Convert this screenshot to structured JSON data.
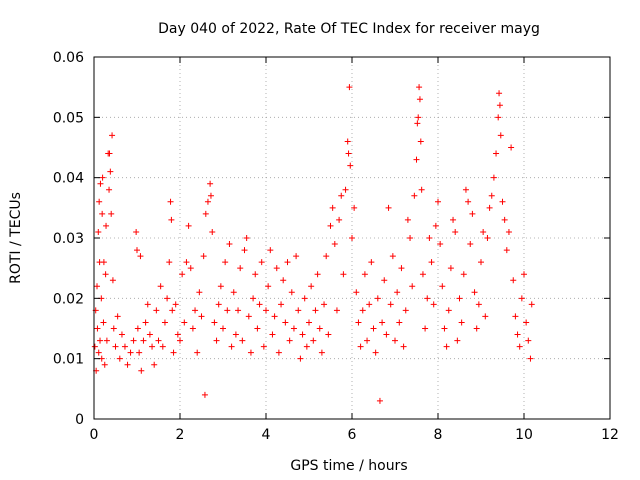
{
  "chart_data": {
    "type": "scatter",
    "title": "Day 040 of 2022, Rate Of TEC Index for receiver mayg",
    "xlabel": "GPS time / hours",
    "ylabel": "ROTI / TECUs",
    "xlim": [
      0,
      12
    ],
    "ylim": [
      0,
      0.06
    ],
    "xticks": [
      0,
      2,
      4,
      6,
      8,
      10,
      12
    ],
    "yticks": [
      0,
      0.01,
      0.02,
      0.03,
      0.04,
      0.05,
      0.06
    ],
    "xtick_labels": [
      "0",
      "2",
      "4",
      "6",
      "8",
      "10",
      "12"
    ],
    "ytick_labels": [
      "0",
      "0.01",
      "0.02",
      "0.03",
      "0.04",
      "0.05",
      "0.06"
    ],
    "grid": true,
    "marker": "+",
    "color": "#ff0000",
    "series": [
      {
        "points": [
          [
            0.02,
            0.012
          ],
          [
            0.04,
            0.018
          ],
          [
            0.05,
            0.008
          ],
          [
            0.07,
            0.022
          ],
          [
            0.08,
            0.015
          ],
          [
            0.1,
            0.031
          ],
          [
            0.11,
            0.011
          ],
          [
            0.12,
            0.036
          ],
          [
            0.13,
            0.026
          ],
          [
            0.14,
            0.013
          ],
          [
            0.15,
            0.039
          ],
          [
            0.17,
            0.02
          ],
          [
            0.18,
            0.01
          ],
          [
            0.19,
            0.034
          ],
          [
            0.2,
            0.04
          ],
          [
            0.22,
            0.016
          ],
          [
            0.23,
            0.026
          ],
          [
            0.25,
            0.009
          ],
          [
            0.27,
            0.024
          ],
          [
            0.28,
            0.032
          ],
          [
            0.3,
            0.013
          ],
          [
            0.33,
            0.044
          ],
          [
            0.35,
            0.038
          ],
          [
            0.36,
            0.044
          ],
          [
            0.38,
            0.041
          ],
          [
            0.4,
            0.034
          ],
          [
            0.42,
            0.047
          ],
          [
            0.44,
            0.023
          ],
          [
            0.46,
            0.015
          ],
          [
            0.5,
            0.012
          ],
          [
            0.55,
            0.017
          ],
          [
            0.6,
            0.01
          ],
          [
            0.65,
            0.014
          ],
          [
            0.72,
            0.012
          ],
          [
            0.78,
            0.009
          ],
          [
            0.85,
            0.011
          ],
          [
            0.92,
            0.013
          ],
          [
            0.98,
            0.031
          ],
          [
            1.0,
            0.028
          ],
          [
            1.02,
            0.015
          ],
          [
            1.05,
            0.011
          ],
          [
            1.08,
            0.027
          ],
          [
            1.1,
            0.008
          ],
          [
            1.15,
            0.013
          ],
          [
            1.2,
            0.016
          ],
          [
            1.25,
            0.019
          ],
          [
            1.3,
            0.014
          ],
          [
            1.35,
            0.012
          ],
          [
            1.4,
            0.009
          ],
          [
            1.45,
            0.018
          ],
          [
            1.5,
            0.013
          ],
          [
            1.55,
            0.022
          ],
          [
            1.6,
            0.012
          ],
          [
            1.65,
            0.016
          ],
          [
            1.7,
            0.02
          ],
          [
            1.75,
            0.026
          ],
          [
            1.78,
            0.036
          ],
          [
            1.8,
            0.033
          ],
          [
            1.82,
            0.018
          ],
          [
            1.85,
            0.011
          ],
          [
            1.9,
            0.019
          ],
          [
            1.95,
            0.014
          ],
          [
            2.0,
            0.013
          ],
          [
            2.05,
            0.024
          ],
          [
            2.1,
            0.016
          ],
          [
            2.15,
            0.026
          ],
          [
            2.2,
            0.032
          ],
          [
            2.25,
            0.025
          ],
          [
            2.3,
            0.015
          ],
          [
            2.35,
            0.018
          ],
          [
            2.4,
            0.011
          ],
          [
            2.45,
            0.021
          ],
          [
            2.5,
            0.017
          ],
          [
            2.55,
            0.027
          ],
          [
            2.58,
            0.004
          ],
          [
            2.6,
            0.034
          ],
          [
            2.65,
            0.036
          ],
          [
            2.7,
            0.039
          ],
          [
            2.72,
            0.037
          ],
          [
            2.75,
            0.031
          ],
          [
            2.8,
            0.016
          ],
          [
            2.85,
            0.013
          ],
          [
            2.9,
            0.019
          ],
          [
            2.95,
            0.022
          ],
          [
            3.0,
            0.015
          ],
          [
            3.05,
            0.026
          ],
          [
            3.1,
            0.018
          ],
          [
            3.15,
            0.029
          ],
          [
            3.2,
            0.012
          ],
          [
            3.25,
            0.021
          ],
          [
            3.3,
            0.014
          ],
          [
            3.35,
            0.018
          ],
          [
            3.4,
            0.025
          ],
          [
            3.45,
            0.013
          ],
          [
            3.5,
            0.028
          ],
          [
            3.55,
            0.03
          ],
          [
            3.6,
            0.017
          ],
          [
            3.65,
            0.011
          ],
          [
            3.7,
            0.02
          ],
          [
            3.75,
            0.024
          ],
          [
            3.8,
            0.015
          ],
          [
            3.85,
            0.019
          ],
          [
            3.9,
            0.026
          ],
          [
            3.95,
            0.012
          ],
          [
            4.0,
            0.018
          ],
          [
            4.05,
            0.022
          ],
          [
            4.1,
            0.028
          ],
          [
            4.15,
            0.014
          ],
          [
            4.2,
            0.017
          ],
          [
            4.25,
            0.025
          ],
          [
            4.3,
            0.011
          ],
          [
            4.35,
            0.019
          ],
          [
            4.4,
            0.023
          ],
          [
            4.45,
            0.016
          ],
          [
            4.5,
            0.026
          ],
          [
            4.55,
            0.013
          ],
          [
            4.6,
            0.021
          ],
          [
            4.65,
            0.015
          ],
          [
            4.7,
            0.027
          ],
          [
            4.75,
            0.018
          ],
          [
            4.8,
            0.01
          ],
          [
            4.85,
            0.014
          ],
          [
            4.9,
            0.02
          ],
          [
            4.95,
            0.012
          ],
          [
            5.0,
            0.016
          ],
          [
            5.05,
            0.022
          ],
          [
            5.1,
            0.013
          ],
          [
            5.15,
            0.018
          ],
          [
            5.2,
            0.024
          ],
          [
            5.25,
            0.015
          ],
          [
            5.3,
            0.011
          ],
          [
            5.35,
            0.019
          ],
          [
            5.4,
            0.027
          ],
          [
            5.45,
            0.014
          ],
          [
            5.5,
            0.032
          ],
          [
            5.55,
            0.035
          ],
          [
            5.6,
            0.029
          ],
          [
            5.65,
            0.018
          ],
          [
            5.7,
            0.033
          ],
          [
            5.75,
            0.037
          ],
          [
            5.8,
            0.024
          ],
          [
            5.85,
            0.038
          ],
          [
            5.9,
            0.046
          ],
          [
            5.92,
            0.044
          ],
          [
            5.94,
            0.055
          ],
          [
            5.96,
            0.042
          ],
          [
            6.0,
            0.03
          ],
          [
            6.05,
            0.035
          ],
          [
            6.1,
            0.021
          ],
          [
            6.15,
            0.016
          ],
          [
            6.2,
            0.012
          ],
          [
            6.25,
            0.018
          ],
          [
            6.3,
            0.024
          ],
          [
            6.35,
            0.013
          ],
          [
            6.4,
            0.019
          ],
          [
            6.45,
            0.026
          ],
          [
            6.5,
            0.015
          ],
          [
            6.55,
            0.011
          ],
          [
            6.6,
            0.02
          ],
          [
            6.65,
            0.003
          ],
          [
            6.7,
            0.016
          ],
          [
            6.75,
            0.023
          ],
          [
            6.8,
            0.014
          ],
          [
            6.85,
            0.035
          ],
          [
            6.9,
            0.019
          ],
          [
            6.95,
            0.027
          ],
          [
            7.0,
            0.013
          ],
          [
            7.05,
            0.021
          ],
          [
            7.1,
            0.016
          ],
          [
            7.15,
            0.025
          ],
          [
            7.2,
            0.012
          ],
          [
            7.25,
            0.018
          ],
          [
            7.3,
            0.033
          ],
          [
            7.35,
            0.03
          ],
          [
            7.4,
            0.022
          ],
          [
            7.45,
            0.037
          ],
          [
            7.5,
            0.043
          ],
          [
            7.52,
            0.049
          ],
          [
            7.54,
            0.05
          ],
          [
            7.56,
            0.055
          ],
          [
            7.58,
            0.053
          ],
          [
            7.6,
            0.046
          ],
          [
            7.62,
            0.038
          ],
          [
            7.65,
            0.024
          ],
          [
            7.7,
            0.015
          ],
          [
            7.75,
            0.02
          ],
          [
            7.8,
            0.03
          ],
          [
            7.85,
            0.026
          ],
          [
            7.9,
            0.019
          ],
          [
            7.95,
            0.032
          ],
          [
            8.0,
            0.036
          ],
          [
            8.05,
            0.029
          ],
          [
            8.1,
            0.022
          ],
          [
            8.15,
            0.015
          ],
          [
            8.2,
            0.012
          ],
          [
            8.25,
            0.018
          ],
          [
            8.3,
            0.025
          ],
          [
            8.35,
            0.033
          ],
          [
            8.4,
            0.031
          ],
          [
            8.45,
            0.013
          ],
          [
            8.5,
            0.02
          ],
          [
            8.55,
            0.016
          ],
          [
            8.6,
            0.024
          ],
          [
            8.65,
            0.038
          ],
          [
            8.7,
            0.036
          ],
          [
            8.75,
            0.029
          ],
          [
            8.8,
            0.034
          ],
          [
            8.85,
            0.021
          ],
          [
            8.9,
            0.015
          ],
          [
            8.95,
            0.019
          ],
          [
            9.0,
            0.026
          ],
          [
            9.05,
            0.031
          ],
          [
            9.1,
            0.017
          ],
          [
            9.15,
            0.03
          ],
          [
            9.2,
            0.035
          ],
          [
            9.25,
            0.037
          ],
          [
            9.3,
            0.04
          ],
          [
            9.35,
            0.044
          ],
          [
            9.4,
            0.05
          ],
          [
            9.42,
            0.054
          ],
          [
            9.44,
            0.052
          ],
          [
            9.46,
            0.047
          ],
          [
            9.5,
            0.036
          ],
          [
            9.55,
            0.033
          ],
          [
            9.6,
            0.028
          ],
          [
            9.65,
            0.031
          ],
          [
            9.7,
            0.045
          ],
          [
            9.75,
            0.023
          ],
          [
            9.8,
            0.017
          ],
          [
            9.85,
            0.014
          ],
          [
            9.9,
            0.012
          ],
          [
            9.95,
            0.02
          ],
          [
            10.0,
            0.024
          ],
          [
            10.05,
            0.016
          ],
          [
            10.1,
            0.013
          ],
          [
            10.15,
            0.01
          ],
          [
            10.18,
            0.019
          ]
        ]
      }
    ]
  }
}
